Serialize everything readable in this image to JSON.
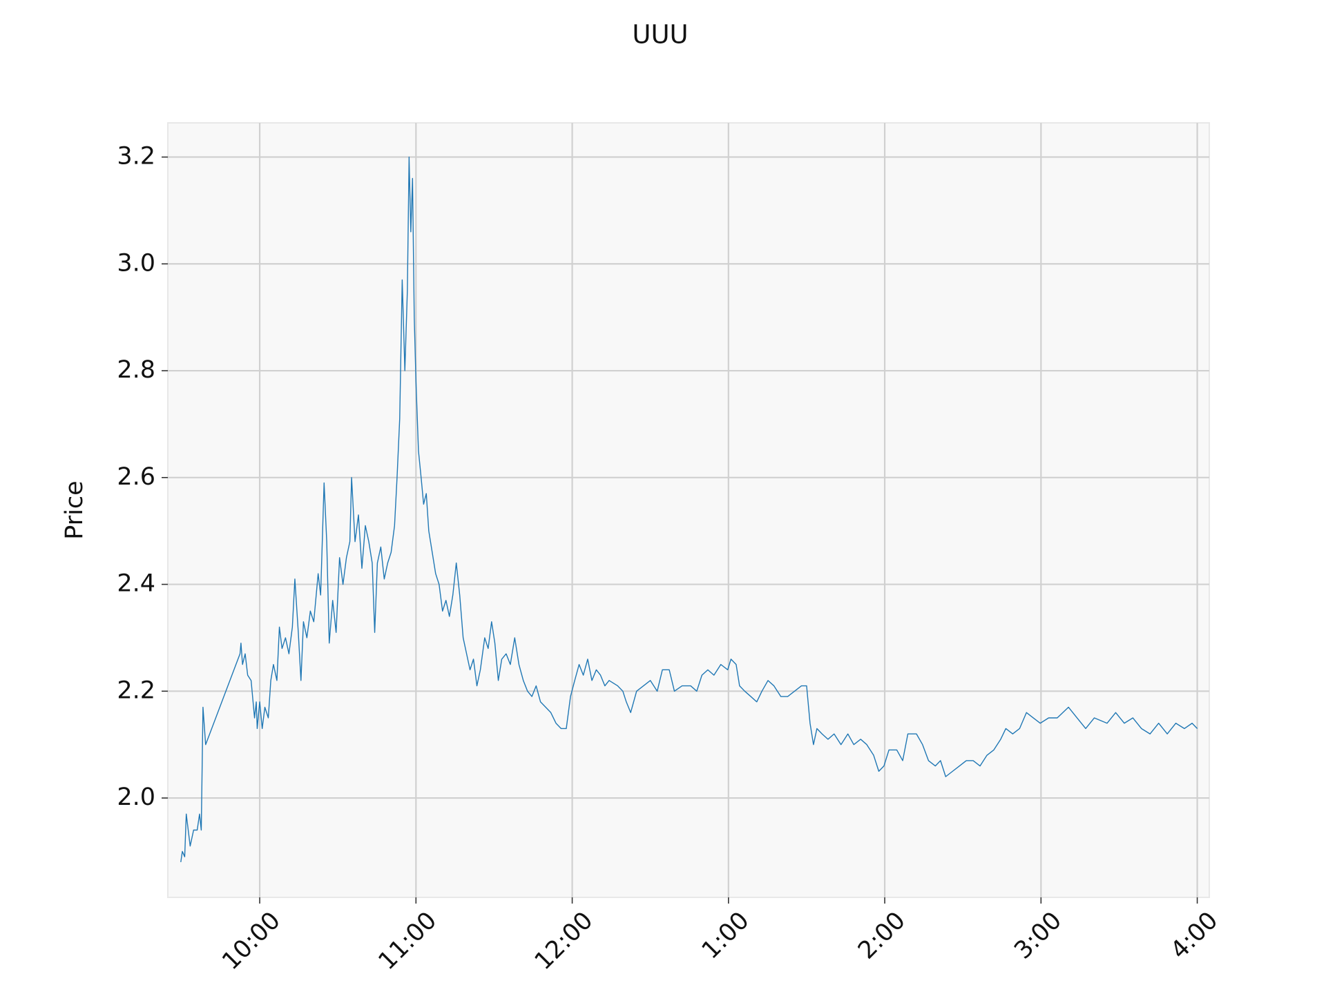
{
  "chart_data": {
    "type": "line",
    "title": "UUU",
    "y_label": "Price",
    "color": "#1f77b4",
    "grid": true,
    "xlim": [
      9.412,
      16.077
    ],
    "ylim": [
      1.814,
      3.264
    ],
    "xticks": [
      {
        "value": 10,
        "label": "10:00"
      },
      {
        "value": 11,
        "label": "11:00"
      },
      {
        "value": 12,
        "label": "12:00"
      },
      {
        "value": 13,
        "label": "1:00"
      },
      {
        "value": 14,
        "label": "2:00"
      },
      {
        "value": 15,
        "label": "3:00"
      },
      {
        "value": 16,
        "label": "4:00"
      }
    ],
    "yticks": [
      {
        "value": 2,
        "label": "2.0"
      },
      2.2,
      2.4,
      2.6,
      2.8,
      {
        "value": 3,
        "label": "3.0"
      },
      3.2
    ],
    "x": [
      9.495,
      9.505,
      9.52,
      9.53,
      9.555,
      9.577,
      9.6,
      9.615,
      9.626,
      9.637,
      9.654,
      9.874,
      9.88,
      9.89,
      9.907,
      9.923,
      9.945,
      9.967,
      9.978,
      9.984,
      10.0,
      10.016,
      10.033,
      10.055,
      10.071,
      10.088,
      10.11,
      10.126,
      10.143,
      10.165,
      10.187,
      10.209,
      10.225,
      10.247,
      10.264,
      10.28,
      10.302,
      10.324,
      10.346,
      10.374,
      10.39,
      10.412,
      10.429,
      10.445,
      10.467,
      10.489,
      10.511,
      10.533,
      10.555,
      10.577,
      10.588,
      10.61,
      10.632,
      10.654,
      10.676,
      10.698,
      10.72,
      10.736,
      10.753,
      10.775,
      10.797,
      10.819,
      10.841,
      10.863,
      10.879,
      10.896,
      10.912,
      10.929,
      10.945,
      10.956,
      10.967,
      10.978,
      10.989,
      11.0,
      11.016,
      11.033,
      11.049,
      11.066,
      11.082,
      11.104,
      11.126,
      11.148,
      11.17,
      11.192,
      11.214,
      11.236,
      11.258,
      11.28,
      11.302,
      11.324,
      11.346,
      11.368,
      11.39,
      11.412,
      11.44,
      11.462,
      11.484,
      11.505,
      11.527,
      11.549,
      11.577,
      11.604,
      11.632,
      11.659,
      11.687,
      11.714,
      11.742,
      11.769,
      11.797,
      11.83,
      11.863,
      11.896,
      11.929,
      11.962,
      11.989,
      12.016,
      12.044,
      12.071,
      12.099,
      12.126,
      12.154,
      12.181,
      12.209,
      12.236,
      12.291,
      12.324,
      12.346,
      12.374,
      12.412,
      12.456,
      12.5,
      12.544,
      12.577,
      12.621,
      12.654,
      12.703,
      12.758,
      12.797,
      12.83,
      12.868,
      12.907,
      12.951,
      12.995,
      13.016,
      13.049,
      13.071,
      13.104,
      13.143,
      13.181,
      13.214,
      13.253,
      13.291,
      13.335,
      13.379,
      13.423,
      13.467,
      13.5,
      13.522,
      13.544,
      13.566,
      13.599,
      13.637,
      13.676,
      13.72,
      13.764,
      13.802,
      13.846,
      13.885,
      13.929,
      13.962,
      13.995,
      14.027,
      14.077,
      14.115,
      14.148,
      14.203,
      14.242,
      14.28,
      14.324,
      14.357,
      14.39,
      14.434,
      14.478,
      14.522,
      14.566,
      14.61,
      14.654,
      14.698,
      14.742,
      14.775,
      14.819,
      14.863,
      14.907,
      14.951,
      14.995,
      15.049,
      15.104,
      15.176,
      15.231,
      15.286,
      15.341,
      15.423,
      15.478,
      15.533,
      15.588,
      15.643,
      15.698,
      15.753,
      15.808,
      15.863,
      15.918,
      15.967,
      16.0
    ],
    "values": [
      1.88,
      1.9,
      1.89,
      1.97,
      1.91,
      1.94,
      1.94,
      1.97,
      1.94,
      2.17,
      2.1,
      2.27,
      2.29,
      2.25,
      2.27,
      2.23,
      2.22,
      2.15,
      2.18,
      2.13,
      2.18,
      2.13,
      2.17,
      2.15,
      2.22,
      2.25,
      2.22,
      2.32,
      2.28,
      2.3,
      2.27,
      2.32,
      2.41,
      2.31,
      2.22,
      2.33,
      2.3,
      2.35,
      2.33,
      2.42,
      2.38,
      2.59,
      2.48,
      2.29,
      2.37,
      2.31,
      2.45,
      2.4,
      2.45,
      2.48,
      2.6,
      2.48,
      2.53,
      2.43,
      2.51,
      2.48,
      2.44,
      2.31,
      2.44,
      2.47,
      2.41,
      2.44,
      2.46,
      2.51,
      2.6,
      2.71,
      2.97,
      2.8,
      2.95,
      3.2,
      3.06,
      3.16,
      2.9,
      2.78,
      2.65,
      2.6,
      2.55,
      2.57,
      2.5,
      2.46,
      2.42,
      2.4,
      2.35,
      2.37,
      2.34,
      2.38,
      2.44,
      2.38,
      2.3,
      2.27,
      2.24,
      2.26,
      2.21,
      2.24,
      2.3,
      2.28,
      2.33,
      2.29,
      2.22,
      2.26,
      2.27,
      2.25,
      2.3,
      2.25,
      2.22,
      2.2,
      2.19,
      2.21,
      2.18,
      2.17,
      2.16,
      2.14,
      2.13,
      2.13,
      2.19,
      2.22,
      2.25,
      2.23,
      2.26,
      2.22,
      2.24,
      2.23,
      2.21,
      2.22,
      2.21,
      2.2,
      2.18,
      2.16,
      2.2,
      2.21,
      2.22,
      2.2,
      2.24,
      2.24,
      2.2,
      2.21,
      2.21,
      2.2,
      2.23,
      2.24,
      2.23,
      2.25,
      2.24,
      2.26,
      2.25,
      2.21,
      2.2,
      2.19,
      2.18,
      2.2,
      2.22,
      2.21,
      2.19,
      2.19,
      2.2,
      2.21,
      2.21,
      2.14,
      2.1,
      2.13,
      2.12,
      2.11,
      2.12,
      2.1,
      2.12,
      2.1,
      2.11,
      2.1,
      2.08,
      2.05,
      2.06,
      2.09,
      2.09,
      2.07,
      2.12,
      2.12,
      2.1,
      2.07,
      2.06,
      2.07,
      2.04,
      2.05,
      2.06,
      2.07,
      2.07,
      2.06,
      2.08,
      2.09,
      2.11,
      2.13,
      2.12,
      2.13,
      2.16,
      2.15,
      2.14,
      2.15,
      2.15,
      2.17,
      2.15,
      2.13,
      2.15,
      2.14,
      2.16,
      2.14,
      2.15,
      2.13,
      2.12,
      2.14,
      2.12,
      2.14,
      2.13,
      2.14,
      2.13
    ]
  }
}
